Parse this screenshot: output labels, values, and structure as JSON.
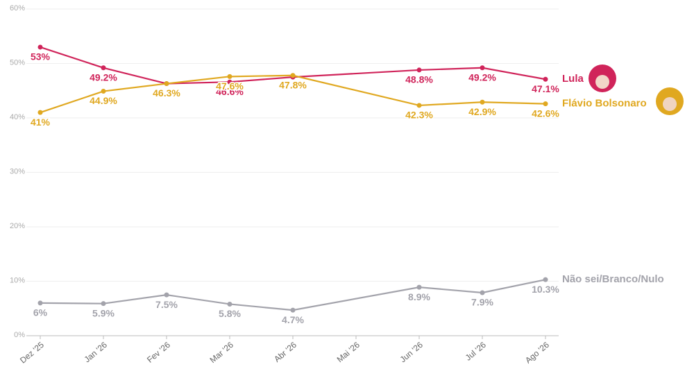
{
  "chart_data": {
    "type": "line",
    "xticks": [
      {
        "value": "2025-12",
        "label": "Dez '25"
      },
      {
        "value": "2026-01",
        "label": "Jan '26"
      },
      {
        "value": "2026-02",
        "label": "Fev '26"
      },
      {
        "value": "2026-03",
        "label": "Mar '26"
      },
      {
        "value": "2026-04",
        "label": "Abr '26"
      },
      {
        "value": "2026-05",
        "label": "Mai '26"
      },
      {
        "value": "2026-06",
        "label": "Jun '26"
      },
      {
        "value": "2026-07",
        "label": "Jul '26"
      },
      {
        "value": "2026-08",
        "label": "Ago '26"
      }
    ],
    "xlim": [
      "2025-12",
      "2026-08"
    ],
    "x": [
      "2025-12",
      "2026-01",
      "2026-02",
      "2026-03",
      "2026-04",
      "2026-06",
      "2026-07",
      "2026-08"
    ],
    "ylim": [
      0,
      60
    ],
    "yticks": [
      {
        "value": 0,
        "label": "0%"
      },
      {
        "value": 10,
        "label": "10%"
      },
      {
        "value": 20,
        "label": "20%"
      },
      {
        "value": 30,
        "label": "30%"
      },
      {
        "value": 40,
        "label": "40%"
      },
      {
        "value": 50,
        "label": "50%"
      },
      {
        "value": 60,
        "label": "60%"
      }
    ],
    "grid": true,
    "series": [
      {
        "name": "Lula",
        "color": "#d0245a",
        "values": [
          53,
          49.2,
          46.3,
          46.6,
          47.5,
          48.8,
          49.2,
          47.1
        ],
        "value_labels": [
          "53%",
          "49.2%",
          null,
          "46.6%",
          null,
          "48.8%",
          "49.2%",
          "47.1%"
        ]
      },
      {
        "name": "Flávio Bolsonaro",
        "color": "#e0a820",
        "values": [
          41,
          44.9,
          46.3,
          47.6,
          47.8,
          42.3,
          42.9,
          42.6
        ],
        "value_labels": [
          "41%",
          "44.9%",
          "46.3%",
          "47.6%",
          "47.8%",
          "42.3%",
          "42.9%",
          "42.6%"
        ]
      },
      {
        "name": "Não sei/Branco/Nulo",
        "color": "#a3a3ab",
        "values": [
          6,
          5.9,
          7.5,
          5.8,
          4.7,
          8.9,
          7.9,
          10.3
        ],
        "value_labels": [
          "6%",
          "5.9%",
          "7.5%",
          "5.8%",
          "4.7%",
          "8.9%",
          "7.9%",
          "10.3%"
        ]
      }
    ]
  }
}
